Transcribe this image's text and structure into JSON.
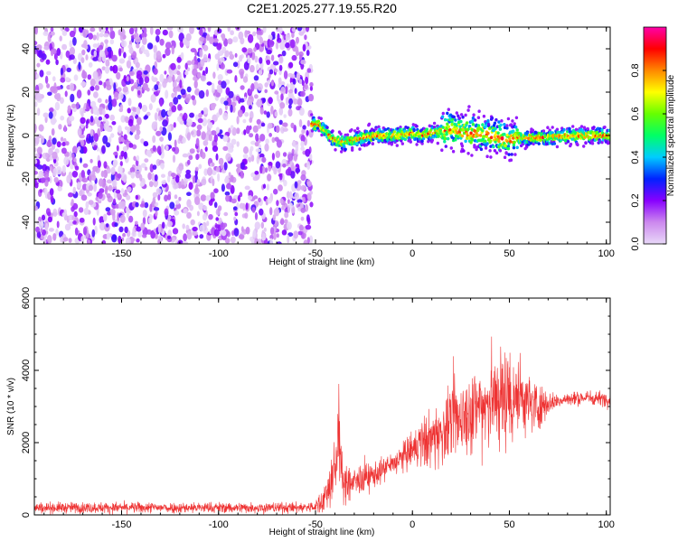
{
  "chart_data": [
    {
      "type": "heatmap",
      "title": "C2E1.2025.277.19.55.R20",
      "xlabel": "Height of straight line (km)",
      "ylabel": "Frequency (Hz)",
      "xlim": [
        -195,
        102
      ],
      "ylim": [
        -50,
        50
      ],
      "xticks": [
        -150,
        -100,
        -50,
        0,
        50,
        100
      ],
      "yticks": [
        -40,
        -20,
        0,
        20,
        40
      ],
      "colorbar": {
        "label": "Normalized spectral amplitude",
        "ticks": [
          0.0,
          0.2,
          0.4,
          0.6,
          0.8
        ],
        "tick_labels": [
          "0.0",
          "0.2",
          "0.4",
          "0.6",
          "0.8"
        ],
        "range": [
          0,
          1
        ],
        "colors": [
          "#e8d8f8",
          "#cc88ee",
          "#8800ff",
          "#0022ff",
          "#00ccff",
          "#00ff66",
          "#66ff00",
          "#ffff00",
          "#ff8800",
          "#ff0000",
          "#ff00aa"
        ]
      },
      "noise_region": {
        "x_from": -195,
        "x_to": -52,
        "amplitude": 0.1
      },
      "signal_track": {
        "x": [
          -52,
          -48,
          -45,
          -40,
          -35,
          -30,
          -25,
          -20,
          -10,
          0,
          5,
          10,
          15,
          20,
          25,
          30,
          35,
          40,
          45,
          50,
          55,
          60,
          65,
          70,
          80,
          90,
          102
        ],
        "freq": [
          5,
          5,
          2,
          -2,
          -3,
          -2,
          -1,
          0,
          0,
          1,
          0,
          1,
          2,
          3,
          2,
          1,
          1,
          0,
          -1,
          -2,
          -1,
          -1,
          -1,
          -1,
          0,
          0,
          0
        ]
      }
    },
    {
      "type": "line",
      "xlabel": "Height of straight line (km)",
      "ylabel": "SNR (10 * v/v)",
      "xlim": [
        -195,
        102
      ],
      "ylim": [
        0,
        6000
      ],
      "xticks": [
        -150,
        -100,
        -50,
        0,
        50,
        100
      ],
      "yticks": [
        0,
        2000,
        4000,
        6000
      ],
      "color": "#ee3333",
      "envelope": {
        "x": [
          -195,
          -60,
          -50,
          -45,
          -42,
          -39,
          -38,
          -37,
          -36,
          -35,
          -30,
          -25,
          -20,
          -15,
          -10,
          -5,
          0,
          5,
          10,
          15,
          20,
          25,
          30,
          35,
          40,
          45,
          50,
          52,
          55,
          60,
          65,
          70,
          75,
          80,
          90,
          102
        ],
        "mean": [
          200,
          200,
          220,
          500,
          900,
          1500,
          2700,
          1400,
          900,
          800,
          900,
          1000,
          1100,
          1250,
          1400,
          1600,
          1800,
          2000,
          2100,
          2300,
          2500,
          2700,
          2900,
          3000,
          3150,
          3250,
          3300,
          3350,
          3300,
          3100,
          3000,
          3100,
          3150,
          3200,
          3250,
          3200
        ],
        "spread": [
          150,
          150,
          150,
          500,
          700,
          800,
          1400,
          800,
          600,
          500,
          450,
          400,
          350,
          350,
          350,
          400,
          500,
          700,
          800,
          900,
          1000,
          1050,
          1100,
          1200,
          1300,
          1400,
          1500,
          1600,
          1100,
          800,
          700,
          300,
          200,
          200,
          200,
          200
        ]
      }
    }
  ]
}
